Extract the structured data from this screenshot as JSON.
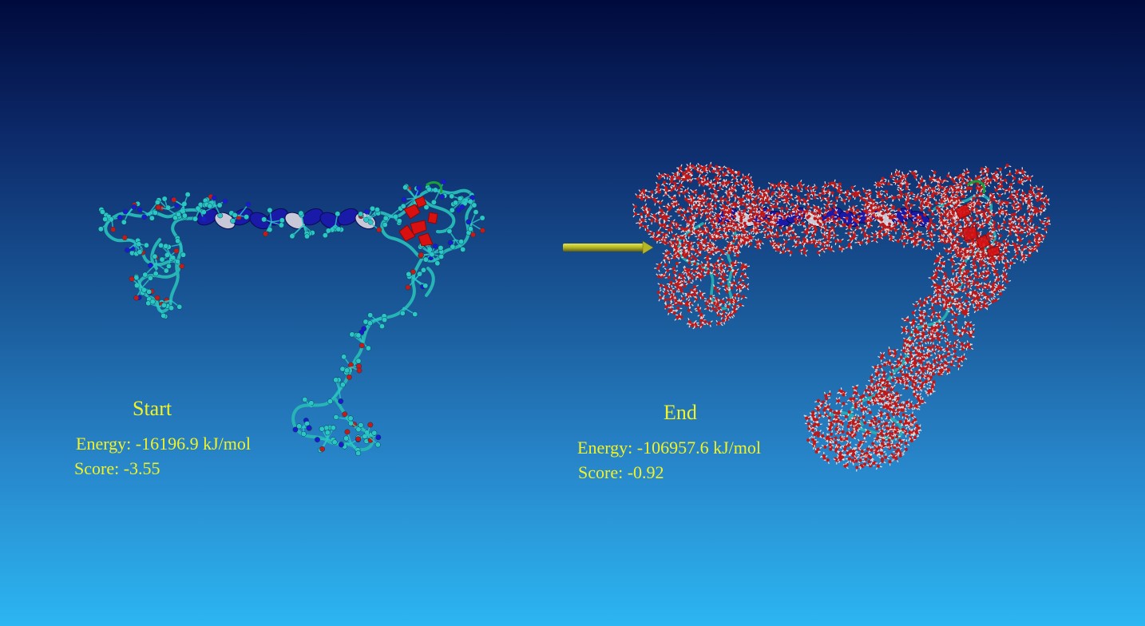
{
  "start": {
    "title": "Start",
    "energy": "Energy: -16196.9 kJ/mol",
    "score": "Score: -3.55"
  },
  "end": {
    "title": "End",
    "energy": "Energy: -106957.6 kJ/mol",
    "score": "Score: -0.92"
  },
  "colors": {
    "label": "#f2f226",
    "arrow": "#b5b526",
    "helix": "#1a1aa8",
    "helix_light": "#c8c8d8",
    "coil": "#27b4b4",
    "atom_cyan": "#2bc7c7",
    "atom_red": "#c41a1a",
    "atom_blue": "#1a1ad0",
    "water_red": "#c01818",
    "water_white": "#e8e0e0",
    "sheet_red": "#d81010"
  },
  "icons": {
    "arrow": "transition-arrow-icon"
  }
}
